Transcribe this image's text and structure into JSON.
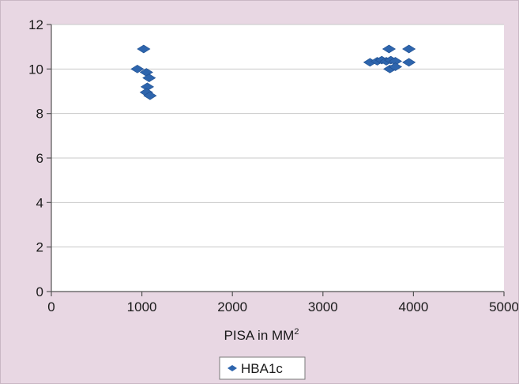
{
  "chart_data": {
    "type": "scatter",
    "title": "",
    "xlabel": "PISA in MM",
    "xlabel_superscript": "2",
    "ylabel": "",
    "xlim": [
      0,
      5000
    ],
    "ylim": [
      0,
      12
    ],
    "xticks": [
      0,
      1000,
      2000,
      3000,
      4000,
      5000
    ],
    "yticks": [
      0,
      2,
      4,
      6,
      8,
      10,
      12
    ],
    "grid": "horizontal",
    "legend_position": "bottom",
    "series": [
      {
        "name": "HBA1c",
        "color": "#2e65ad",
        "marker": "diamond",
        "points": [
          {
            "x": 1020,
            "y": 10.9
          },
          {
            "x": 950,
            "y": 10.0
          },
          {
            "x": 1050,
            "y": 9.85
          },
          {
            "x": 1080,
            "y": 9.6
          },
          {
            "x": 1060,
            "y": 9.2
          },
          {
            "x": 1050,
            "y": 8.95
          },
          {
            "x": 1090,
            "y": 8.8
          },
          {
            "x": 3520,
            "y": 10.3
          },
          {
            "x": 3600,
            "y": 10.35
          },
          {
            "x": 3650,
            "y": 10.4
          },
          {
            "x": 3700,
            "y": 10.35
          },
          {
            "x": 3730,
            "y": 10.9
          },
          {
            "x": 3750,
            "y": 10.4
          },
          {
            "x": 3800,
            "y": 10.35
          },
          {
            "x": 3740,
            "y": 10.0
          },
          {
            "x": 3800,
            "y": 10.1
          },
          {
            "x": 3950,
            "y": 10.9
          },
          {
            "x": 3950,
            "y": 10.3
          }
        ]
      }
    ]
  }
}
